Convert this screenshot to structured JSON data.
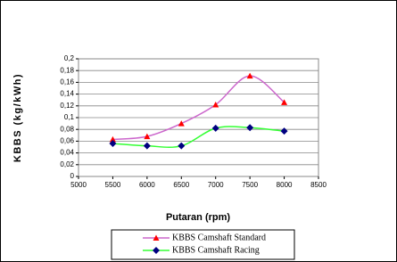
{
  "chart_data": {
    "type": "line",
    "x_label": "Putaran (rpm)",
    "y_label": "KBBS (kg/kWh)",
    "x": [
      5500,
      6000,
      6500,
      7000,
      7500,
      8000
    ],
    "series": [
      {
        "name": "KBBS Camshaft Standard",
        "color": "#cc66cc",
        "marker_color": "#ff0000",
        "marker": "triangle",
        "values": [
          0.063,
          0.068,
          0.09,
          0.122,
          0.171,
          0.126
        ]
      },
      {
        "name": "KBBS Camshaft Racing",
        "color": "#33ff33",
        "marker_color": "#000080",
        "marker": "diamond",
        "values": [
          0.056,
          0.052,
          0.052,
          0.082,
          0.083,
          0.077
        ]
      }
    ],
    "xlim": [
      5000,
      8500
    ],
    "xticks": [
      5000,
      5500,
      6000,
      6500,
      7000,
      7500,
      8000,
      8500
    ],
    "ylim": [
      0,
      0.2
    ],
    "yticks": [
      0,
      {
        "value": 0.02,
        "label": "0,02"
      },
      {
        "value": 0.04,
        "label": "0,04"
      },
      {
        "value": 0.06,
        "label": "0,06"
      },
      {
        "value": 0.08,
        "label": "0,08"
      },
      {
        "value": 0.1,
        "label": "0,1"
      },
      {
        "value": 0.12,
        "label": "0,12"
      },
      {
        "value": 0.14,
        "label": "0,14"
      },
      {
        "value": 0.16,
        "label": "0,16"
      },
      {
        "value": 0.18,
        "label": "0,18"
      },
      {
        "value": 0.2,
        "label": "0,2"
      }
    ],
    "grid": true,
    "smooth": true,
    "legend": "bottom"
  }
}
